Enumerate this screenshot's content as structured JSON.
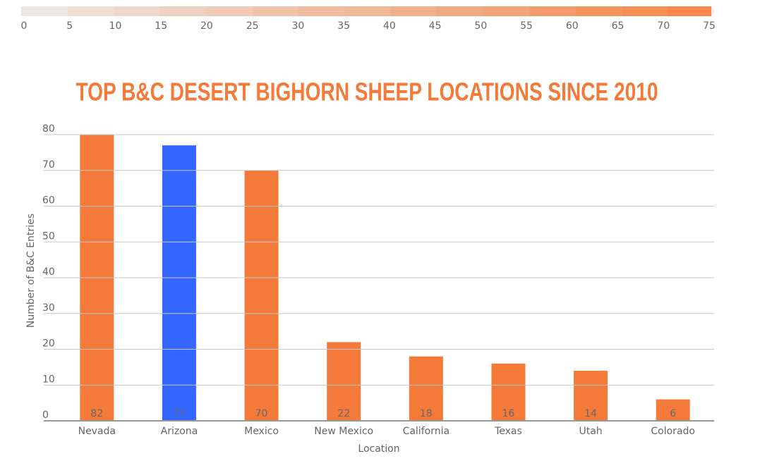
{
  "chart_data": {
    "type": "bar",
    "title": "TOP B&C DESERT BIGHORN SHEEP LOCATIONS SINCE 2010",
    "x_label": "Location",
    "y_label": "Number of B&C Entries",
    "categories": [
      "Nevada",
      "Arizona",
      "Mexico",
      "New Mexico",
      "California",
      "Texas",
      "Utah",
      "Colorado"
    ],
    "values": [
      82,
      77,
      70,
      22,
      18,
      16,
      14,
      6
    ],
    "colors": [
      "#f47a3a",
      "#3366ff",
      "#f47a3a",
      "#f47a3a",
      "#f47a3a",
      "#f47a3a",
      "#f47a3a",
      "#f47a3a"
    ],
    "ylim": [
      0,
      80
    ],
    "yticks": [
      0,
      10,
      20,
      30,
      40,
      50,
      60,
      70,
      80
    ],
    "grid": true,
    "color_scale": {
      "range": [
        0,
        75
      ],
      "ticks": [
        0,
        5,
        10,
        15,
        20,
        25,
        30,
        35,
        40,
        45,
        50,
        55,
        60,
        65,
        70,
        75
      ],
      "colors": [
        "#ececec",
        "#f5884a"
      ]
    }
  }
}
